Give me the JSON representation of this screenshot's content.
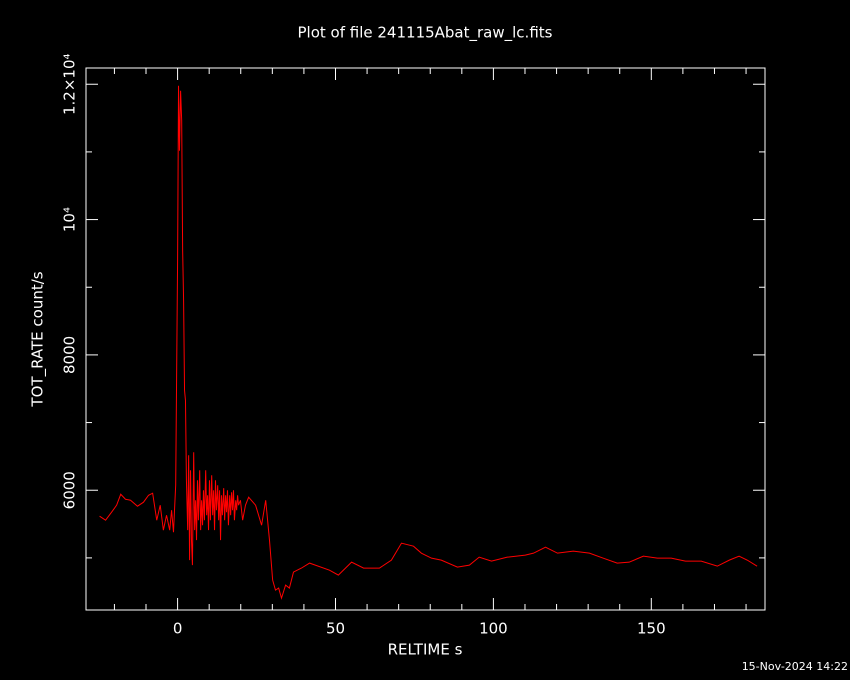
{
  "chart_data": {
    "type": "line",
    "title": "Plot of file 241115Abat_raw_lc.fits",
    "xlabel": "RELTIME  s",
    "ylabel": "TOT_RATE  count/s",
    "timestamp": "15-Nov-2024 14:22",
    "color": "#ff0000",
    "xlim": [
      -29,
      186
    ],
    "ylim": [
      4230,
      12240
    ],
    "xticks": [
      0,
      50,
      100,
      150
    ],
    "xminorticks": [
      -20,
      -10,
      10,
      20,
      30,
      40,
      60,
      70,
      80,
      90,
      110,
      120,
      130,
      140,
      160,
      170,
      180
    ],
    "yticks": [
      6000,
      8000,
      {
        "value": 10000,
        "label": "10⁴"
      },
      {
        "value": 12000,
        "label": "1.2×10⁴"
      }
    ],
    "yminorticks": [
      5000,
      7000,
      9000,
      11000
    ],
    "x": [
      -24.7,
      -22.8,
      -20.9,
      -19.3,
      -18.0,
      -16.5,
      -14.9,
      -12.7,
      -10.8,
      -9.2,
      -7.9,
      -6.6,
      -5.5,
      -4.5,
      -3.5,
      -2.5,
      -1.9,
      -1.3,
      -0.6,
      0,
      0.3,
      0.6,
      0.95,
      1.3,
      1.6,
      1.9,
      2.2,
      2.5,
      2.8,
      3.2,
      3.5,
      3.8,
      4.1,
      4.4,
      4.7,
      5.1,
      5.4,
      5.7,
      6.0,
      6.3,
      6.6,
      7.0,
      7.3,
      7.6,
      7.9,
      8.2,
      8.5,
      8.9,
      9.2,
      9.5,
      9.8,
      10.1,
      10.4,
      10.8,
      11.1,
      11.4,
      11.7,
      12.0,
      12.3,
      12.7,
      13.0,
      13.3,
      13.6,
      13.9,
      14.2,
      14.6,
      14.9,
      15.2,
      15.5,
      15.8,
      16.1,
      16.5,
      16.8,
      17.1,
      17.4,
      17.7,
      18.0,
      18.4,
      18.7,
      19.0,
      19.3,
      19.9,
      20.6,
      21.5,
      22.5,
      24.7,
      26.6,
      27.9,
      29.1,
      30.1,
      31.0,
      32.0,
      32.9,
      34.2,
      35.4,
      36.7,
      39.2,
      41.8,
      48.1,
      50.9,
      55.1,
      58.9,
      63.9,
      67.7,
      70.9,
      74.7,
      77.2,
      80.4,
      83.5,
      88.6,
      92.4,
      95.5,
      99.4,
      104.4,
      110.1,
      112.7,
      116.5,
      120.3,
      125.3,
      130.4,
      134.8,
      139.2,
      143.0,
      147.5,
      151.9,
      156.3,
      160.8,
      165.8,
      170.9,
      174.7,
      177.8,
      180.4,
      183.5
    ],
    "values": [
      5616,
      5557,
      5675,
      5779,
      5941,
      5867,
      5852,
      5764,
      5823,
      5926,
      5956,
      5557,
      5779,
      5410,
      5631,
      5410,
      5705,
      5380,
      6074,
      9395,
      11978,
      11018,
      11904,
      11461,
      9542,
      8804,
      7476,
      7328,
      6148,
      5410,
      6517,
      4967,
      6295,
      5262,
      4893,
      6561,
      5410,
      5852,
      5262,
      6148,
      5557,
      6295,
      5410,
      5852,
      5483,
      6000,
      5557,
      6295,
      5631,
      5926,
      5410,
      6148,
      5557,
      6221,
      5631,
      6000,
      5410,
      6148,
      5705,
      6074,
      5557,
      6000,
      5262,
      5926,
      5631,
      6030,
      5557,
      5926,
      5675,
      6000,
      5483,
      5926,
      5631,
      5970,
      5705,
      6000,
      5557,
      5852,
      5705,
      5926,
      5779,
      5852,
      5557,
      5779,
      5897,
      5779,
      5483,
      5852,
      5262,
      4672,
      4524,
      4554,
      4406,
      4598,
      4554,
      4790,
      4849,
      4923,
      4819,
      4746,
      4937,
      4849,
      4849,
      4967,
      5218,
      5173,
      5070,
      4996,
      4967,
      4864,
      4893,
      5011,
      4952,
      5011,
      5041,
      5070,
      5159,
      5070,
      5100,
      5070,
      4996,
      4923,
      4937,
      5026,
      4996,
      4996,
      4952,
      4952,
      4878,
      4967,
      5026,
      4967,
      4878
    ]
  }
}
